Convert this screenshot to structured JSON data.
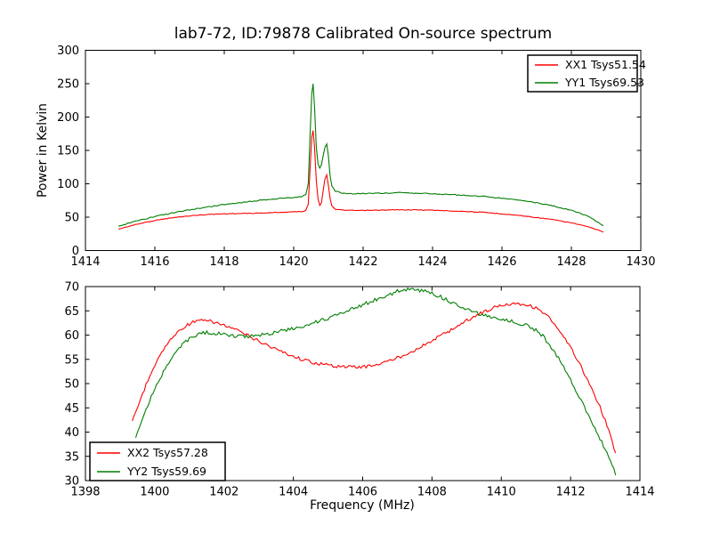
{
  "figure": {
    "title": "lab7-72, ID:79878 Calibrated On-source spectrum",
    "background_color": "#ffffff",
    "axis_color": "#000000"
  },
  "chart_data": [
    {
      "type": "line",
      "title": "lab7-72, ID:79878 Calibrated On-source spectrum",
      "xlabel": "",
      "ylabel": "Power in Kelvin",
      "xlim": [
        1414,
        1430
      ],
      "ylim": [
        0,
        300
      ],
      "xticks": [
        1414,
        1416,
        1418,
        1420,
        1422,
        1424,
        1426,
        1428,
        1430
      ],
      "yticks": [
        0,
        50,
        100,
        150,
        200,
        250,
        300
      ],
      "grid": false,
      "legend_position": "upper right",
      "series": [
        {
          "name": "XX1 Tsys51.54",
          "color": "#ff0000",
          "noise": 0.5,
          "points": [
            [
              1414.95,
              32
            ],
            [
              1415.3,
              37
            ],
            [
              1415.7,
              42
            ],
            [
              1416.1,
              46
            ],
            [
              1416.5,
              49
            ],
            [
              1417.0,
              52
            ],
            [
              1417.5,
              54
            ],
            [
              1418.0,
              55
            ],
            [
              1418.5,
              55.5
            ],
            [
              1419.0,
              56
            ],
            [
              1419.5,
              57
            ],
            [
              1420.0,
              58
            ],
            [
              1420.25,
              58.5
            ],
            [
              1420.35,
              60
            ],
            [
              1420.42,
              70
            ],
            [
              1420.47,
              120
            ],
            [
              1420.52,
              170
            ],
            [
              1420.56,
              180
            ],
            [
              1420.6,
              155
            ],
            [
              1420.65,
              105
            ],
            [
              1420.7,
              78
            ],
            [
              1420.75,
              67
            ],
            [
              1420.8,
              72
            ],
            [
              1420.85,
              90
            ],
            [
              1420.9,
              107
            ],
            [
              1420.95,
              113
            ],
            [
              1421.0,
              98
            ],
            [
              1421.05,
              78
            ],
            [
              1421.1,
              67
            ],
            [
              1421.2,
              62
            ],
            [
              1421.4,
              60.5
            ],
            [
              1421.7,
              60
            ],
            [
              1422.0,
              60
            ],
            [
              1422.5,
              60.5
            ],
            [
              1423.0,
              61
            ],
            [
              1423.5,
              61
            ],
            [
              1424.0,
              60.5
            ],
            [
              1424.5,
              59.5
            ],
            [
              1425.0,
              58.5
            ],
            [
              1425.5,
              57
            ],
            [
              1426.0,
              55
            ],
            [
              1426.5,
              52.5
            ],
            [
              1427.0,
              49.5
            ],
            [
              1427.5,
              46
            ],
            [
              1428.0,
              41.5
            ],
            [
              1428.3,
              38
            ],
            [
              1428.6,
              33.5
            ],
            [
              1428.92,
              28
            ]
          ]
        },
        {
          "name": "YY1 Tsys69.53",
          "color": "#007d00",
          "noise": 0.7,
          "points": [
            [
              1414.95,
              36
            ],
            [
              1415.3,
              42
            ],
            [
              1415.7,
              47
            ],
            [
              1416.1,
              52
            ],
            [
              1416.5,
              56
            ],
            [
              1417.0,
              61
            ],
            [
              1417.5,
              65
            ],
            [
              1418.0,
              69
            ],
            [
              1418.5,
              72
            ],
            [
              1419.0,
              75
            ],
            [
              1419.5,
              77.5
            ],
            [
              1420.0,
              79.5
            ],
            [
              1420.25,
              81
            ],
            [
              1420.35,
              84
            ],
            [
              1420.42,
              100
            ],
            [
              1420.47,
              170
            ],
            [
              1420.52,
              235
            ],
            [
              1420.56,
              250
            ],
            [
              1420.6,
              215
            ],
            [
              1420.65,
              155
            ],
            [
              1420.7,
              130
            ],
            [
              1420.75,
              124
            ],
            [
              1420.8,
              129
            ],
            [
              1420.85,
              142
            ],
            [
              1420.9,
              154
            ],
            [
              1420.95,
              159
            ],
            [
              1421.0,
              141
            ],
            [
              1421.05,
              112
            ],
            [
              1421.1,
              96
            ],
            [
              1421.2,
              89
            ],
            [
              1421.4,
              86
            ],
            [
              1421.7,
              85
            ],
            [
              1422.0,
              85.5
            ],
            [
              1422.5,
              86
            ],
            [
              1423.0,
              86.5
            ],
            [
              1423.5,
              86
            ],
            [
              1424.0,
              85
            ],
            [
              1424.5,
              84
            ],
            [
              1425.0,
              82.5
            ],
            [
              1425.5,
              81
            ],
            [
              1426.0,
              78.5
            ],
            [
              1426.5,
              75.5
            ],
            [
              1427.0,
              71.5
            ],
            [
              1427.5,
              66.5
            ],
            [
              1428.0,
              60
            ],
            [
              1428.3,
              55
            ],
            [
              1428.6,
              48
            ],
            [
              1428.92,
              37
            ]
          ]
        }
      ]
    },
    {
      "type": "line",
      "title": "",
      "xlabel": "Frequency (MHz)",
      "ylabel": "",
      "xlim": [
        1398,
        1414
      ],
      "ylim": [
        30,
        70
      ],
      "xticks": [
        1398,
        1400,
        1402,
        1404,
        1406,
        1408,
        1410,
        1412,
        1414
      ],
      "yticks": [
        30,
        35,
        40,
        45,
        50,
        55,
        60,
        65,
        70
      ],
      "grid": false,
      "legend_position": "lower left",
      "series": [
        {
          "name": "XX2 Tsys57.28",
          "color": "#ff0000",
          "noise": 0.35,
          "points": [
            [
              1399.35,
              42
            ],
            [
              1399.6,
              47
            ],
            [
              1399.9,
              52.5
            ],
            [
              1400.2,
              56.5
            ],
            [
              1400.5,
              59.5
            ],
            [
              1400.8,
              61.5
            ],
            [
              1401.1,
              62.7
            ],
            [
              1401.4,
              63
            ],
            [
              1401.7,
              62.7
            ],
            [
              1402.0,
              62
            ],
            [
              1402.3,
              61.2
            ],
            [
              1402.6,
              60.2
            ],
            [
              1403.0,
              58.8
            ],
            [
              1403.4,
              57.4
            ],
            [
              1403.8,
              56.2
            ],
            [
              1404.2,
              55.1
            ],
            [
              1404.6,
              54.3
            ],
            [
              1405.0,
              53.8
            ],
            [
              1405.4,
              53.5
            ],
            [
              1405.8,
              53.4
            ],
            [
              1406.2,
              53.6
            ],
            [
              1406.6,
              54.3
            ],
            [
              1407.0,
              55.3
            ],
            [
              1407.4,
              56.6
            ],
            [
              1407.8,
              58
            ],
            [
              1408.2,
              59.7
            ],
            [
              1408.6,
              61.3
            ],
            [
              1409.0,
              63
            ],
            [
              1409.4,
              64.5
            ],
            [
              1409.8,
              65.7
            ],
            [
              1410.1,
              66.3
            ],
            [
              1410.4,
              66.6
            ],
            [
              1410.7,
              66.3
            ],
            [
              1411.0,
              65.6
            ],
            [
              1411.3,
              64.3
            ],
            [
              1411.6,
              61.5
            ],
            [
              1411.9,
              58.5
            ],
            [
              1412.2,
              55
            ],
            [
              1412.5,
              50.5
            ],
            [
              1412.8,
              46
            ],
            [
              1413.05,
              41.5
            ],
            [
              1413.3,
              35.5
            ]
          ]
        },
        {
          "name": "YY2 Tsys59.69",
          "color": "#007d00",
          "noise": 0.4,
          "points": [
            [
              1399.45,
              38.5
            ],
            [
              1399.7,
              44
            ],
            [
              1400.0,
              49
            ],
            [
              1400.3,
              53
            ],
            [
              1400.6,
              56.5
            ],
            [
              1400.9,
              58.8
            ],
            [
              1401.2,
              60
            ],
            [
              1401.5,
              60.5
            ],
            [
              1401.8,
              60.3
            ],
            [
              1402.1,
              59.9
            ],
            [
              1402.4,
              59.7
            ],
            [
              1402.7,
              59.8
            ],
            [
              1403.0,
              60
            ],
            [
              1403.4,
              60.5
            ],
            [
              1403.8,
              61
            ],
            [
              1404.2,
              61.7
            ],
            [
              1404.6,
              62.5
            ],
            [
              1405.0,
              63.5
            ],
            [
              1405.4,
              64.7
            ],
            [
              1405.8,
              65.8
            ],
            [
              1406.2,
              66.8
            ],
            [
              1406.6,
              67.8
            ],
            [
              1407.0,
              69
            ],
            [
              1407.3,
              69.5
            ],
            [
              1407.6,
              69.3
            ],
            [
              1407.9,
              68.8
            ],
            [
              1408.2,
              68
            ],
            [
              1408.5,
              67
            ],
            [
              1408.8,
              66
            ],
            [
              1409.1,
              65.2
            ],
            [
              1409.5,
              64
            ],
            [
              1410.0,
              63.2
            ],
            [
              1410.5,
              62.5
            ],
            [
              1410.9,
              61.5
            ],
            [
              1411.2,
              59.8
            ],
            [
              1411.5,
              57
            ],
            [
              1411.8,
              53.5
            ],
            [
              1412.1,
              49.5
            ],
            [
              1412.4,
              45
            ],
            [
              1412.7,
              41
            ],
            [
              1413.0,
              36.5
            ],
            [
              1413.3,
              31.3
            ]
          ]
        }
      ]
    }
  ]
}
